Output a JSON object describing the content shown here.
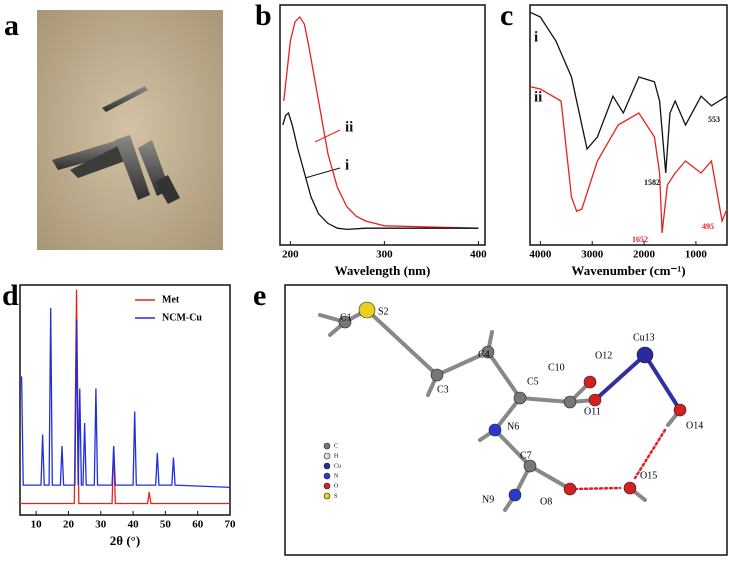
{
  "panel_labels": [
    "a",
    "b",
    "c",
    "d",
    "e"
  ],
  "chart_data": [
    {
      "type": "line",
      "xlabel": "Wavelength (nm)",
      "xlim": [
        189,
        407
      ],
      "ylim": [
        0,
        1
      ],
      "xticks": [
        200,
        300,
        400
      ],
      "series": [
        {
          "name": "ii",
          "color": "#e8231f",
          "x": [
            193,
            200,
            205,
            210,
            215,
            220,
            230,
            240,
            250,
            260,
            270,
            280,
            300,
            350,
            400
          ],
          "values": [
            0.6,
            0.85,
            0.93,
            0.95,
            0.92,
            0.82,
            0.6,
            0.38,
            0.24,
            0.16,
            0.12,
            0.1,
            0.08,
            0.075,
            0.07
          ]
        },
        {
          "name": "i",
          "color": "#111111",
          "x": [
            192,
            195,
            198,
            202,
            208,
            215,
            222,
            230,
            240,
            250,
            260,
            280,
            300,
            350,
            400
          ],
          "values": [
            0.5,
            0.54,
            0.55,
            0.5,
            0.4,
            0.3,
            0.2,
            0.13,
            0.09,
            0.07,
            0.065,
            0.07,
            0.07,
            0.07,
            0.07
          ]
        }
      ]
    },
    {
      "type": "line",
      "xlabel": "Wavenumber (cm⁻¹)",
      "xlim": [
        4200,
        400
      ],
      "ylim": [
        0,
        1
      ],
      "xticks": [
        4000,
        3000,
        2000,
        1000
      ],
      "annotations": [
        "553",
        "1582",
        "1652",
        "495"
      ],
      "series": [
        {
          "name": "i",
          "color": "#111111",
          "x": [
            4200,
            4000,
            3700,
            3400,
            3200,
            3100,
            2900,
            2600,
            2400,
            2100,
            1800,
            1700,
            1582,
            1500,
            1400,
            1200,
            900,
            700,
            553,
            400
          ],
          "values": [
            0.97,
            0.95,
            0.85,
            0.7,
            0.5,
            0.4,
            0.45,
            0.62,
            0.55,
            0.7,
            0.68,
            0.6,
            0.3,
            0.55,
            0.6,
            0.5,
            0.62,
            0.58,
            0.6,
            0.62
          ]
        },
        {
          "name": "ii",
          "color": "#e8231f",
          "x": [
            4200,
            4000,
            3600,
            3400,
            3300,
            3200,
            2900,
            2500,
            2100,
            1800,
            1700,
            1652,
            1550,
            1400,
            1200,
            900,
            700,
            495,
            400
          ],
          "values": [
            0.66,
            0.65,
            0.6,
            0.2,
            0.14,
            0.15,
            0.35,
            0.5,
            0.55,
            0.45,
            0.3,
            0.05,
            0.25,
            0.3,
            0.35,
            0.3,
            0.35,
            0.1,
            0.15
          ]
        }
      ]
    },
    {
      "type": "line",
      "xlabel": "2θ (°)",
      "xlim": [
        5,
        70
      ],
      "ylim": [
        0,
        1
      ],
      "xticks": [
        10,
        20,
        30,
        40,
        50,
        60,
        70
      ],
      "legend": "top-right",
      "series": [
        {
          "name": "Met",
          "color": "#e8231f",
          "x": [
            5,
            21.8,
            22.5,
            23.2,
            33.5,
            34,
            34.5,
            44.5,
            45,
            45.5,
            70
          ],
          "values": [
            0.05,
            0.05,
            0.98,
            0.05,
            0.05,
            0.3,
            0.05,
            0.05,
            0.1,
            0.05,
            0.05
          ]
        },
        {
          "name": "NCM-Cu",
          "color": "#1f2fe0",
          "x": [
            5,
            5.5,
            6,
            11.5,
            12,
            12.5,
            14,
            14.5,
            15,
            17.5,
            18,
            18.5,
            22,
            22.5,
            23,
            23.5,
            24,
            24.5,
            25,
            25.5,
            28,
            28.5,
            29,
            33.5,
            34,
            34.5,
            40,
            40.5,
            41,
            47,
            47.5,
            48,
            52,
            52.5,
            53,
            70
          ],
          "values": [
            0.6,
            0.6,
            0.13,
            0.13,
            0.35,
            0.13,
            0.13,
            0.9,
            0.13,
            0.13,
            0.3,
            0.13,
            0.13,
            0.85,
            0.13,
            0.55,
            0.13,
            0.13,
            0.4,
            0.13,
            0.13,
            0.55,
            0.13,
            0.13,
            0.3,
            0.13,
            0.13,
            0.45,
            0.13,
            0.13,
            0.27,
            0.13,
            0.13,
            0.25,
            0.13,
            0.12
          ]
        }
      ]
    }
  ],
  "structure": {
    "atoms": [
      "C1",
      "S2",
      "C4",
      "C3",
      "C5",
      "C10",
      "O12",
      "Cu13",
      "O11",
      "N6",
      "O14",
      "C7",
      "O15",
      "N9",
      "O8"
    ],
    "legend": [
      "C",
      "H",
      "Cu",
      "N",
      "O",
      "S"
    ]
  }
}
